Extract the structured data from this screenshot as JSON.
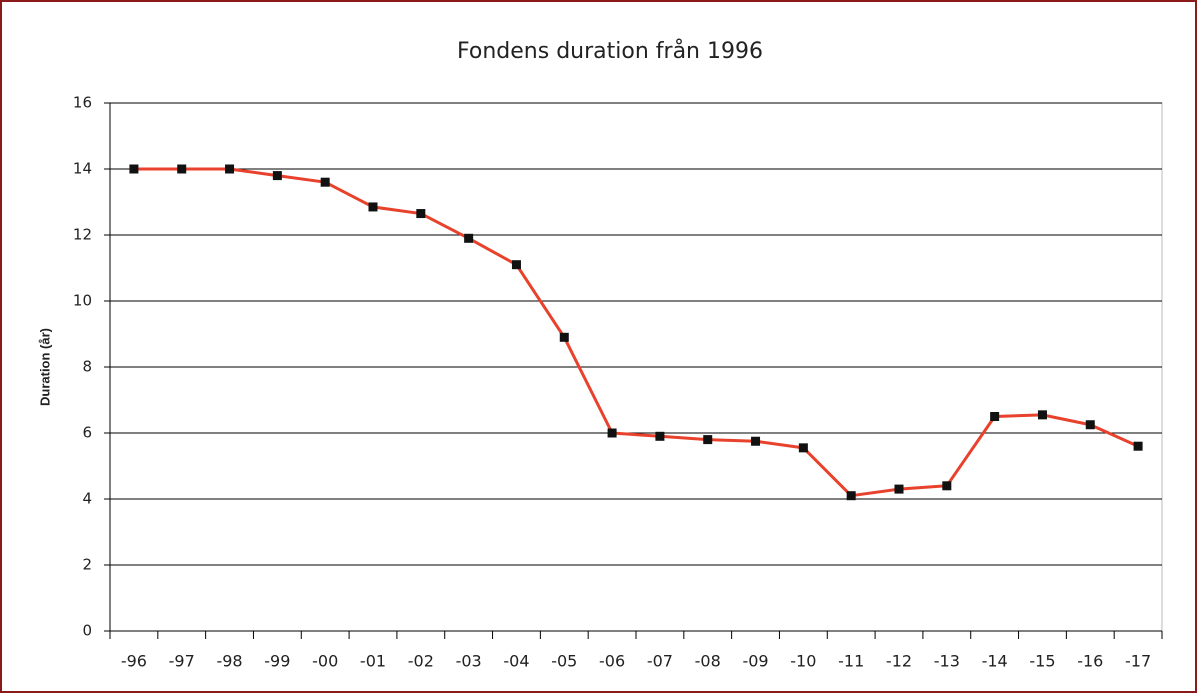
{
  "chart_data": {
    "type": "line",
    "title": "Fondens duration från 1996",
    "y_label": "Duration (år)",
    "categories": [
      "-96",
      "-97",
      "-98",
      "-99",
      "-00",
      "-01",
      "-02",
      "-03",
      "-04",
      "-05",
      "-06",
      "-07",
      "-08",
      "-09",
      "-10",
      "-11",
      "-12",
      "-13",
      "-14",
      "-15",
      "-16",
      "-17"
    ],
    "series": [
      {
        "name": "Duration",
        "color": "#e8412c",
        "marker_color": "#111111",
        "values": [
          14,
          14,
          14,
          13.8,
          13.6,
          12.85,
          12.65,
          11.9,
          11.1,
          8.9,
          6.0,
          5.9,
          5.8,
          5.75,
          5.55,
          4.1,
          4.3,
          4.4,
          6.5,
          6.55,
          6.25,
          5.6
        ]
      }
    ],
    "ylim": [
      0,
      16
    ],
    "yticks": [
      0,
      2,
      4,
      6,
      8,
      10,
      12,
      14,
      16
    ],
    "grid": true
  }
}
